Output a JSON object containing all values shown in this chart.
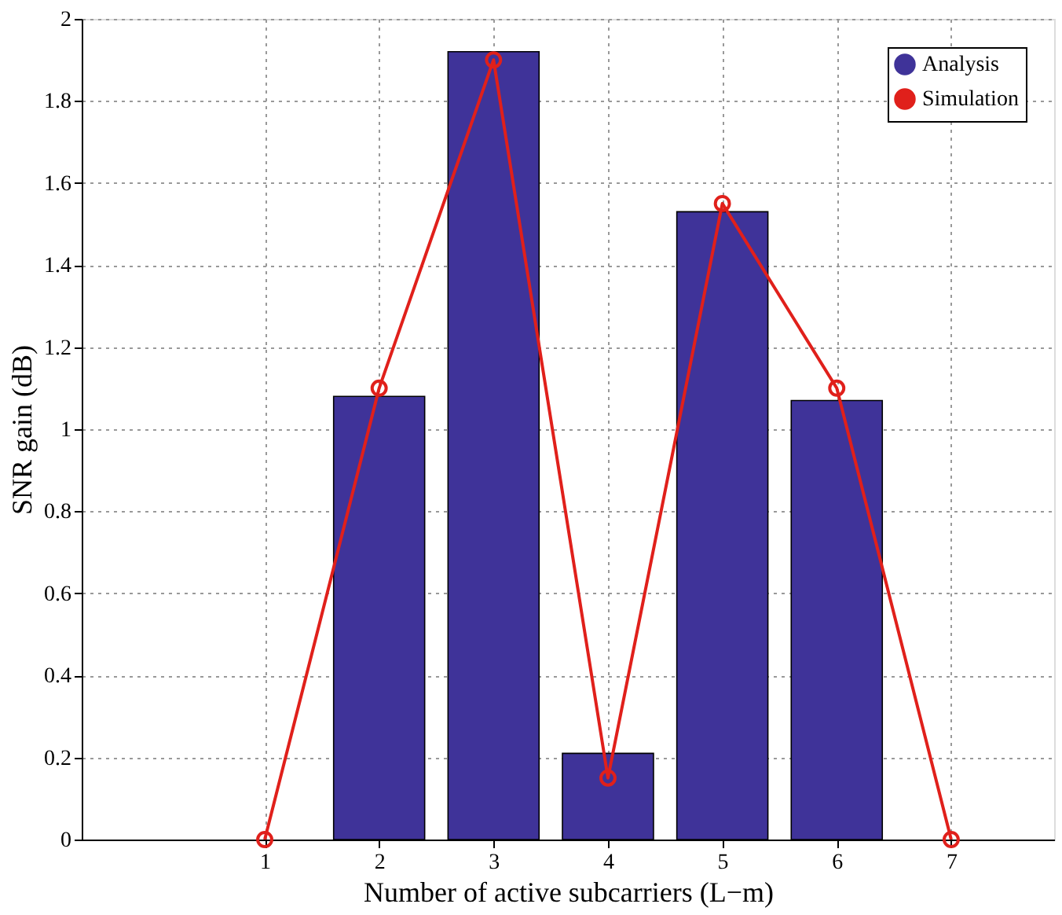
{
  "chart_data": {
    "type": "bar",
    "xlabel": "Number of active subcarriers (L−m)",
    "ylabel": "SNR gain (dB)",
    "x": [
      1,
      2,
      3,
      4,
      5,
      6,
      7
    ],
    "series": [
      {
        "name": "Analysis",
        "type": "bar",
        "color": "#3f3399",
        "values": [
          0,
          1.08,
          1.92,
          0.21,
          1.53,
          1.07,
          0
        ]
      },
      {
        "name": "Simulation",
        "type": "line",
        "color": "#e0201b",
        "marker": "circle",
        "values": [
          0,
          1.1,
          1.9,
          0.15,
          1.55,
          1.1,
          0
        ]
      }
    ],
    "xlim": [
      -0.6,
      7.9
    ],
    "xticks": [
      1,
      2,
      3,
      4,
      5,
      6,
      7
    ],
    "ylim": [
      0,
      2
    ],
    "yticks": [
      0,
      0.2,
      0.4,
      0.6,
      0.8,
      1,
      1.2,
      1.4,
      1.6,
      1.8,
      2
    ],
    "grid": true,
    "legend": "top right"
  }
}
